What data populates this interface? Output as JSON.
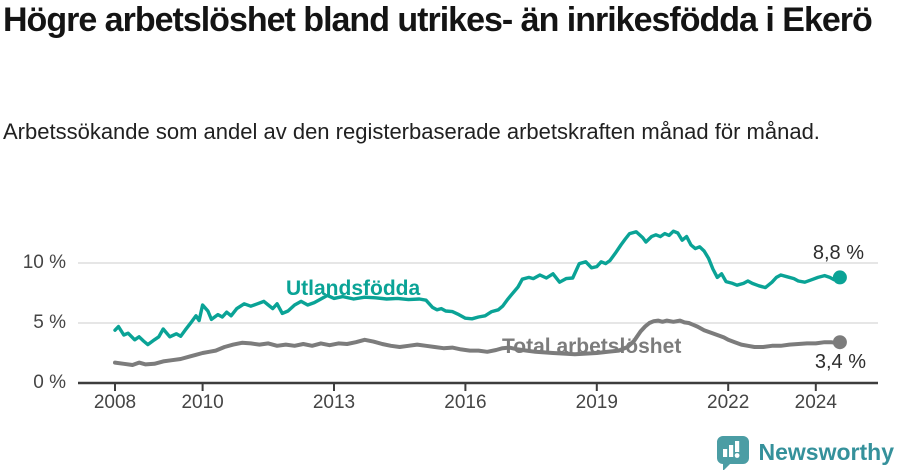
{
  "header": {
    "title": "Högre arbetslöshet bland utrikes- än inrikesfödda i Ekerö",
    "subtitle": "Arbetssökande som andel av den registerbaserade arbetskraften månad för månad."
  },
  "colors": {
    "accent_teal": "#0aa396",
    "line_gray": "#7c7c7c",
    "value_label": "#2d2d2d",
    "axis": "#3d3d3d",
    "gridline": "#d8d8d8",
    "brand_teal": "#35919b",
    "logo_fill": "#4b9da4"
  },
  "chart_data": {
    "type": "line",
    "title": "Högre arbetslöshet bland utrikes- än inrikesfödda i Ekerö",
    "xlabel": "",
    "ylabel": "",
    "grid": "horizontal",
    "legend_position": "inline-labels",
    "ylim": [
      0,
      13.5
    ],
    "xlim": [
      2007.9,
      2025.4
    ],
    "y_ticks": [
      {
        "value": 0,
        "label": "0 %"
      },
      {
        "value": 5,
        "label": "5 %"
      },
      {
        "value": 10,
        "label": "10 %"
      }
    ],
    "x_ticks": [
      {
        "value": 2008,
        "label": "2008"
      },
      {
        "value": 2010,
        "label": "2010"
      },
      {
        "value": 2013,
        "label": "2013"
      },
      {
        "value": 2016,
        "label": "2016"
      },
      {
        "value": 2019,
        "label": "2019"
      },
      {
        "value": 2022,
        "label": "2022"
      },
      {
        "value": 2024,
        "label": "2024"
      }
    ],
    "series": [
      {
        "name": "Utlandsfödda",
        "color": "#0aa396",
        "stroke_width": 3.4,
        "end_label": "8,8 %",
        "end_value": 8.8,
        "points": [
          [
            2008.0,
            4.4
          ],
          [
            2008.08,
            4.7
          ],
          [
            2008.2,
            4.0
          ],
          [
            2008.3,
            4.15
          ],
          [
            2008.45,
            3.6
          ],
          [
            2008.55,
            3.85
          ],
          [
            2008.65,
            3.5
          ],
          [
            2008.75,
            3.2
          ],
          [
            2008.9,
            3.6
          ],
          [
            2009.0,
            3.85
          ],
          [
            2009.1,
            4.5
          ],
          [
            2009.25,
            3.85
          ],
          [
            2009.4,
            4.1
          ],
          [
            2009.5,
            3.9
          ],
          [
            2009.6,
            4.4
          ],
          [
            2009.75,
            5.1
          ],
          [
            2009.85,
            5.6
          ],
          [
            2009.92,
            5.2
          ],
          [
            2010.0,
            6.5
          ],
          [
            2010.12,
            6.0
          ],
          [
            2010.2,
            5.3
          ],
          [
            2010.35,
            5.7
          ],
          [
            2010.45,
            5.5
          ],
          [
            2010.55,
            5.9
          ],
          [
            2010.65,
            5.6
          ],
          [
            2010.78,
            6.2
          ],
          [
            2010.95,
            6.6
          ],
          [
            2011.1,
            6.4
          ],
          [
            2011.25,
            6.6
          ],
          [
            2011.4,
            6.8
          ],
          [
            2011.5,
            6.5
          ],
          [
            2011.6,
            6.2
          ],
          [
            2011.7,
            6.6
          ],
          [
            2011.82,
            5.8
          ],
          [
            2011.95,
            6.0
          ],
          [
            2012.1,
            6.5
          ],
          [
            2012.25,
            6.8
          ],
          [
            2012.4,
            6.5
          ],
          [
            2012.55,
            6.7
          ],
          [
            2012.7,
            7.0
          ],
          [
            2012.85,
            7.3
          ],
          [
            2013.0,
            7.05
          ],
          [
            2013.2,
            7.2
          ],
          [
            2013.45,
            7.0
          ],
          [
            2013.7,
            7.15
          ],
          [
            2013.95,
            7.1
          ],
          [
            2014.2,
            7.0
          ],
          [
            2014.45,
            7.05
          ],
          [
            2014.7,
            6.95
          ],
          [
            2014.95,
            7.0
          ],
          [
            2015.1,
            6.9
          ],
          [
            2015.25,
            6.3
          ],
          [
            2015.35,
            6.1
          ],
          [
            2015.45,
            6.2
          ],
          [
            2015.55,
            6.0
          ],
          [
            2015.7,
            5.95
          ],
          [
            2015.85,
            5.7
          ],
          [
            2016.0,
            5.4
          ],
          [
            2016.15,
            5.35
          ],
          [
            2016.3,
            5.5
          ],
          [
            2016.45,
            5.6
          ],
          [
            2016.6,
            5.95
          ],
          [
            2016.75,
            6.1
          ],
          [
            2016.85,
            6.4
          ],
          [
            2016.95,
            6.9
          ],
          [
            2017.05,
            7.35
          ],
          [
            2017.2,
            8.0
          ],
          [
            2017.3,
            8.65
          ],
          [
            2017.45,
            8.8
          ],
          [
            2017.55,
            8.7
          ],
          [
            2017.7,
            9.0
          ],
          [
            2017.85,
            8.75
          ],
          [
            2018.0,
            9.1
          ],
          [
            2018.15,
            8.4
          ],
          [
            2018.3,
            8.7
          ],
          [
            2018.45,
            8.75
          ],
          [
            2018.6,
            9.95
          ],
          [
            2018.75,
            10.1
          ],
          [
            2018.88,
            9.6
          ],
          [
            2019.0,
            9.7
          ],
          [
            2019.1,
            10.1
          ],
          [
            2019.2,
            9.95
          ],
          [
            2019.3,
            10.2
          ],
          [
            2019.42,
            10.8
          ],
          [
            2019.55,
            11.5
          ],
          [
            2019.65,
            12.0
          ],
          [
            2019.75,
            12.45
          ],
          [
            2019.9,
            12.6
          ],
          [
            2020.05,
            12.1
          ],
          [
            2020.12,
            11.75
          ],
          [
            2020.25,
            12.2
          ],
          [
            2020.35,
            12.35
          ],
          [
            2020.45,
            12.2
          ],
          [
            2020.55,
            12.45
          ],
          [
            2020.65,
            12.3
          ],
          [
            2020.75,
            12.65
          ],
          [
            2020.85,
            12.5
          ],
          [
            2020.95,
            11.9
          ],
          [
            2021.05,
            12.2
          ],
          [
            2021.15,
            11.5
          ],
          [
            2021.25,
            11.2
          ],
          [
            2021.35,
            11.35
          ],
          [
            2021.45,
            11.0
          ],
          [
            2021.55,
            10.4
          ],
          [
            2021.65,
            9.5
          ],
          [
            2021.75,
            8.8
          ],
          [
            2021.85,
            9.1
          ],
          [
            2021.95,
            8.45
          ],
          [
            2022.1,
            8.3
          ],
          [
            2022.2,
            8.15
          ],
          [
            2022.35,
            8.3
          ],
          [
            2022.45,
            8.5
          ],
          [
            2022.55,
            8.3
          ],
          [
            2022.7,
            8.1
          ],
          [
            2022.85,
            7.95
          ],
          [
            2023.0,
            8.4
          ],
          [
            2023.1,
            8.8
          ],
          [
            2023.2,
            9.0
          ],
          [
            2023.35,
            8.85
          ],
          [
            2023.5,
            8.7
          ],
          [
            2023.6,
            8.5
          ],
          [
            2023.75,
            8.4
          ],
          [
            2023.9,
            8.6
          ],
          [
            2024.05,
            8.8
          ],
          [
            2024.2,
            8.95
          ],
          [
            2024.32,
            8.8
          ],
          [
            2024.42,
            8.6
          ],
          [
            2024.55,
            8.8
          ]
        ]
      },
      {
        "name": "Total arbetslöshet",
        "color": "#7c7c7c",
        "stroke_width": 4,
        "end_label": "3,4 %",
        "end_value": 3.4,
        "points": [
          [
            2008.0,
            1.7
          ],
          [
            2008.2,
            1.6
          ],
          [
            2008.4,
            1.5
          ],
          [
            2008.55,
            1.7
          ],
          [
            2008.7,
            1.55
          ],
          [
            2008.9,
            1.6
          ],
          [
            2009.1,
            1.8
          ],
          [
            2009.3,
            1.9
          ],
          [
            2009.5,
            2.0
          ],
          [
            2009.7,
            2.2
          ],
          [
            2009.85,
            2.35
          ],
          [
            2010.0,
            2.5
          ],
          [
            2010.15,
            2.6
          ],
          [
            2010.3,
            2.7
          ],
          [
            2010.5,
            3.0
          ],
          [
            2010.7,
            3.2
          ],
          [
            2010.9,
            3.35
          ],
          [
            2011.1,
            3.3
          ],
          [
            2011.3,
            3.2
          ],
          [
            2011.5,
            3.3
          ],
          [
            2011.7,
            3.1
          ],
          [
            2011.9,
            3.2
          ],
          [
            2012.1,
            3.1
          ],
          [
            2012.3,
            3.25
          ],
          [
            2012.5,
            3.1
          ],
          [
            2012.7,
            3.3
          ],
          [
            2012.9,
            3.15
          ],
          [
            2013.1,
            3.3
          ],
          [
            2013.3,
            3.25
          ],
          [
            2013.5,
            3.4
          ],
          [
            2013.7,
            3.6
          ],
          [
            2013.9,
            3.45
          ],
          [
            2014.1,
            3.25
          ],
          [
            2014.3,
            3.1
          ],
          [
            2014.5,
            3.0
          ],
          [
            2014.7,
            3.1
          ],
          [
            2014.9,
            3.2
          ],
          [
            2015.1,
            3.1
          ],
          [
            2015.3,
            3.0
          ],
          [
            2015.5,
            2.9
          ],
          [
            2015.7,
            2.95
          ],
          [
            2015.9,
            2.8
          ],
          [
            2016.1,
            2.7
          ],
          [
            2016.3,
            2.7
          ],
          [
            2016.5,
            2.6
          ],
          [
            2016.7,
            2.75
          ],
          [
            2016.85,
            2.9
          ],
          [
            2017.0,
            2.95
          ],
          [
            2017.2,
            2.8
          ],
          [
            2017.4,
            2.7
          ],
          [
            2017.6,
            2.6
          ],
          [
            2017.8,
            2.55
          ],
          [
            2018.0,
            2.5
          ],
          [
            2018.25,
            2.45
          ],
          [
            2018.5,
            2.4
          ],
          [
            2018.75,
            2.45
          ],
          [
            2019.0,
            2.5
          ],
          [
            2019.25,
            2.6
          ],
          [
            2019.5,
            2.7
          ],
          [
            2019.7,
            3.0
          ],
          [
            2019.85,
            3.5
          ],
          [
            2020.0,
            4.3
          ],
          [
            2020.1,
            4.7
          ],
          [
            2020.2,
            5.0
          ],
          [
            2020.3,
            5.15
          ],
          [
            2020.4,
            5.2
          ],
          [
            2020.5,
            5.1
          ],
          [
            2020.6,
            5.2
          ],
          [
            2020.75,
            5.1
          ],
          [
            2020.9,
            5.2
          ],
          [
            2021.0,
            5.05
          ],
          [
            2021.1,
            5.0
          ],
          [
            2021.2,
            4.85
          ],
          [
            2021.3,
            4.7
          ],
          [
            2021.45,
            4.4
          ],
          [
            2021.6,
            4.2
          ],
          [
            2021.75,
            4.0
          ],
          [
            2021.9,
            3.8
          ],
          [
            2022.0,
            3.6
          ],
          [
            2022.15,
            3.4
          ],
          [
            2022.3,
            3.2
          ],
          [
            2022.45,
            3.1
          ],
          [
            2022.6,
            3.0
          ],
          [
            2022.8,
            3.0
          ],
          [
            2023.0,
            3.1
          ],
          [
            2023.2,
            3.1
          ],
          [
            2023.4,
            3.2
          ],
          [
            2023.6,
            3.25
          ],
          [
            2023.8,
            3.3
          ],
          [
            2024.0,
            3.3
          ],
          [
            2024.2,
            3.4
          ],
          [
            2024.35,
            3.4
          ],
          [
            2024.45,
            3.35
          ],
          [
            2024.55,
            3.4
          ]
        ]
      }
    ]
  },
  "footer": {
    "brand": "Newsworthy",
    "logo_icon": "bar-chart-speech-bubble-icon"
  }
}
